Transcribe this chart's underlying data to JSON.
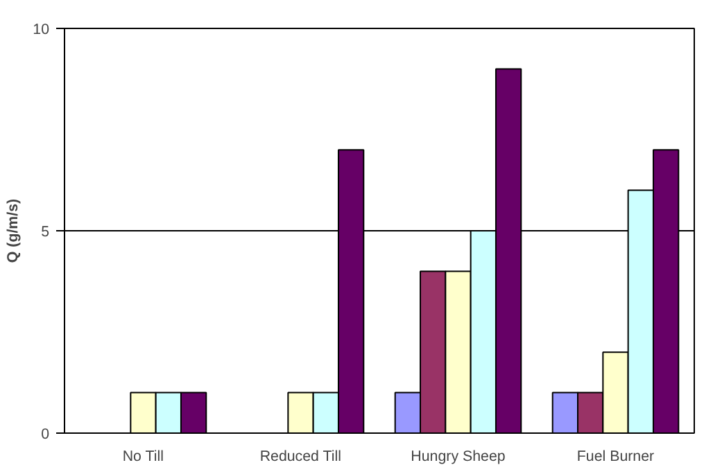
{
  "chart_data": {
    "type": "bar",
    "ylabel": "Q (g/m/s)",
    "categories": [
      "No Till",
      "Reduced Till",
      "Hungry Sheep",
      "Fuel Burner"
    ],
    "series": [
      {
        "color": "#9999ff",
        "values": [
          null,
          null,
          1,
          1
        ]
      },
      {
        "color": "#993366",
        "values": [
          null,
          null,
          4,
          1
        ]
      },
      {
        "color": "#ffffcc",
        "values": [
          1,
          1,
          4,
          2
        ]
      },
      {
        "color": "#ccffff",
        "values": [
          1,
          1,
          5,
          6
        ]
      },
      {
        "color": "#660066",
        "values": [
          1,
          7,
          9,
          7
        ]
      }
    ],
    "ylim": [
      0,
      10
    ],
    "yticks": [
      0,
      5,
      10
    ],
    "grid": "y"
  }
}
